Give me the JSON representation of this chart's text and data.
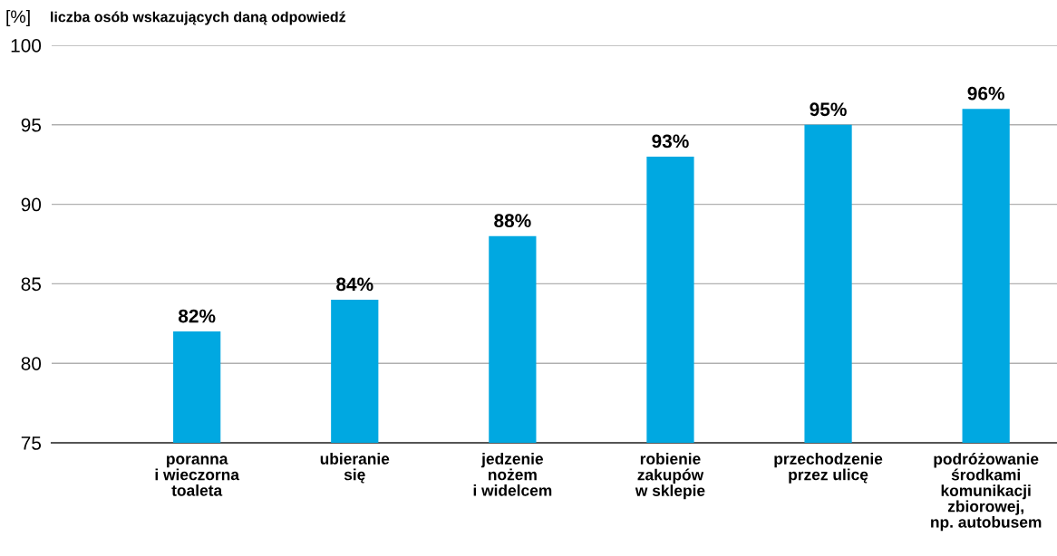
{
  "chart_data": {
    "type": "bar",
    "ylabel": "[%]",
    "title": "liczba osób wskazujących daną odpowiedź",
    "categories": [
      "poranna\ni wieczorna\ntoaleta",
      "ubieranie\nsię",
      "jedzenie\nnożem\ni widelcem",
      "robienie\nzakupów\nw sklepie",
      "przechodzenie\nprzez ulicę",
      "podróżowanie\nśrodkami\nkomunikacji\nzbiorowej,\nnp. autobusem"
    ],
    "values": [
      82,
      84,
      88,
      93,
      95,
      96
    ],
    "color": "#00a8e1",
    "value_labels": [
      "82%",
      "84%",
      "88%",
      "93%",
      "95%",
      "96%"
    ],
    "ylim": [
      75,
      100
    ],
    "yticks": [
      75,
      80,
      85,
      90,
      95,
      100
    ],
    "grid": "y"
  }
}
